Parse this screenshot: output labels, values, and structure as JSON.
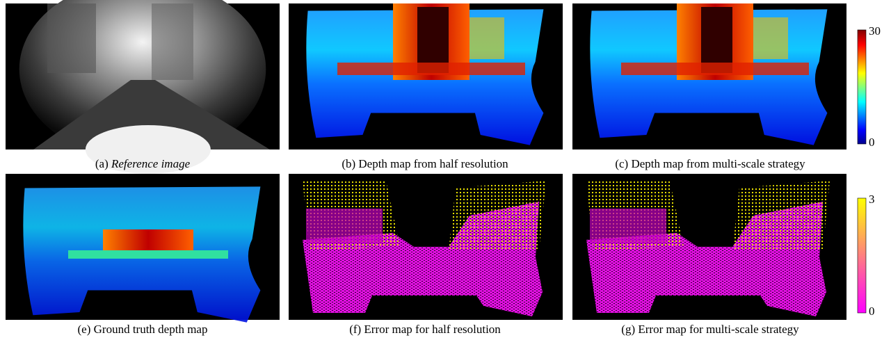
{
  "panels": [
    {
      "label": "(a)",
      "caption": "Reference image"
    },
    {
      "label": "(b)",
      "caption": "Depth map from half resolution"
    },
    {
      "label": "(c)",
      "caption": "Depth map from multi-scale strategy"
    },
    {
      "label": "(e)",
      "caption": "Ground truth depth map"
    },
    {
      "label": "(f)",
      "caption": "Error map for half resolution"
    },
    {
      "label": "(g)",
      "caption": "Error map for multi-scale strategy"
    }
  ],
  "colorbars": [
    {
      "max": 30,
      "min": 0
    },
    {
      "max": 3,
      "min": 0
    }
  ]
}
